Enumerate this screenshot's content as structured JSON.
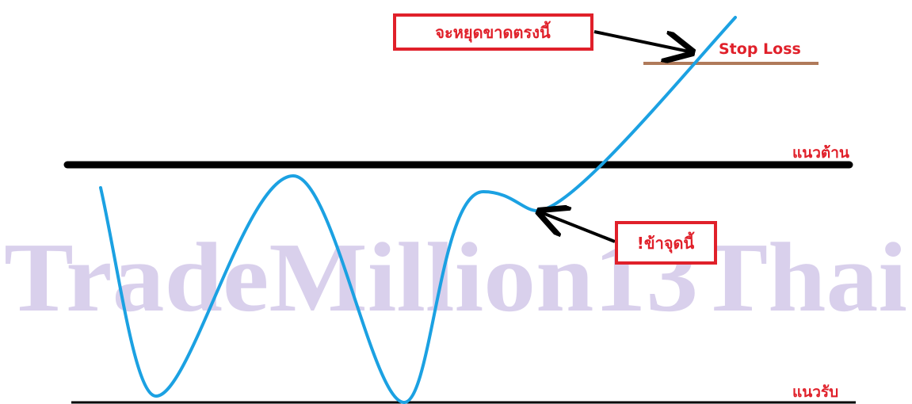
{
  "watermark": "TradeMillion13Thai",
  "callouts": [
    {
      "label": "จะหยุดขาดตรงนี้"
    },
    {
      "label": "!ข้าจุดนี้"
    }
  ],
  "levels": [
    {
      "label": "Stop Loss"
    },
    {
      "label": "แนวต้าน"
    },
    {
      "label": "แนวรับ"
    }
  ]
}
